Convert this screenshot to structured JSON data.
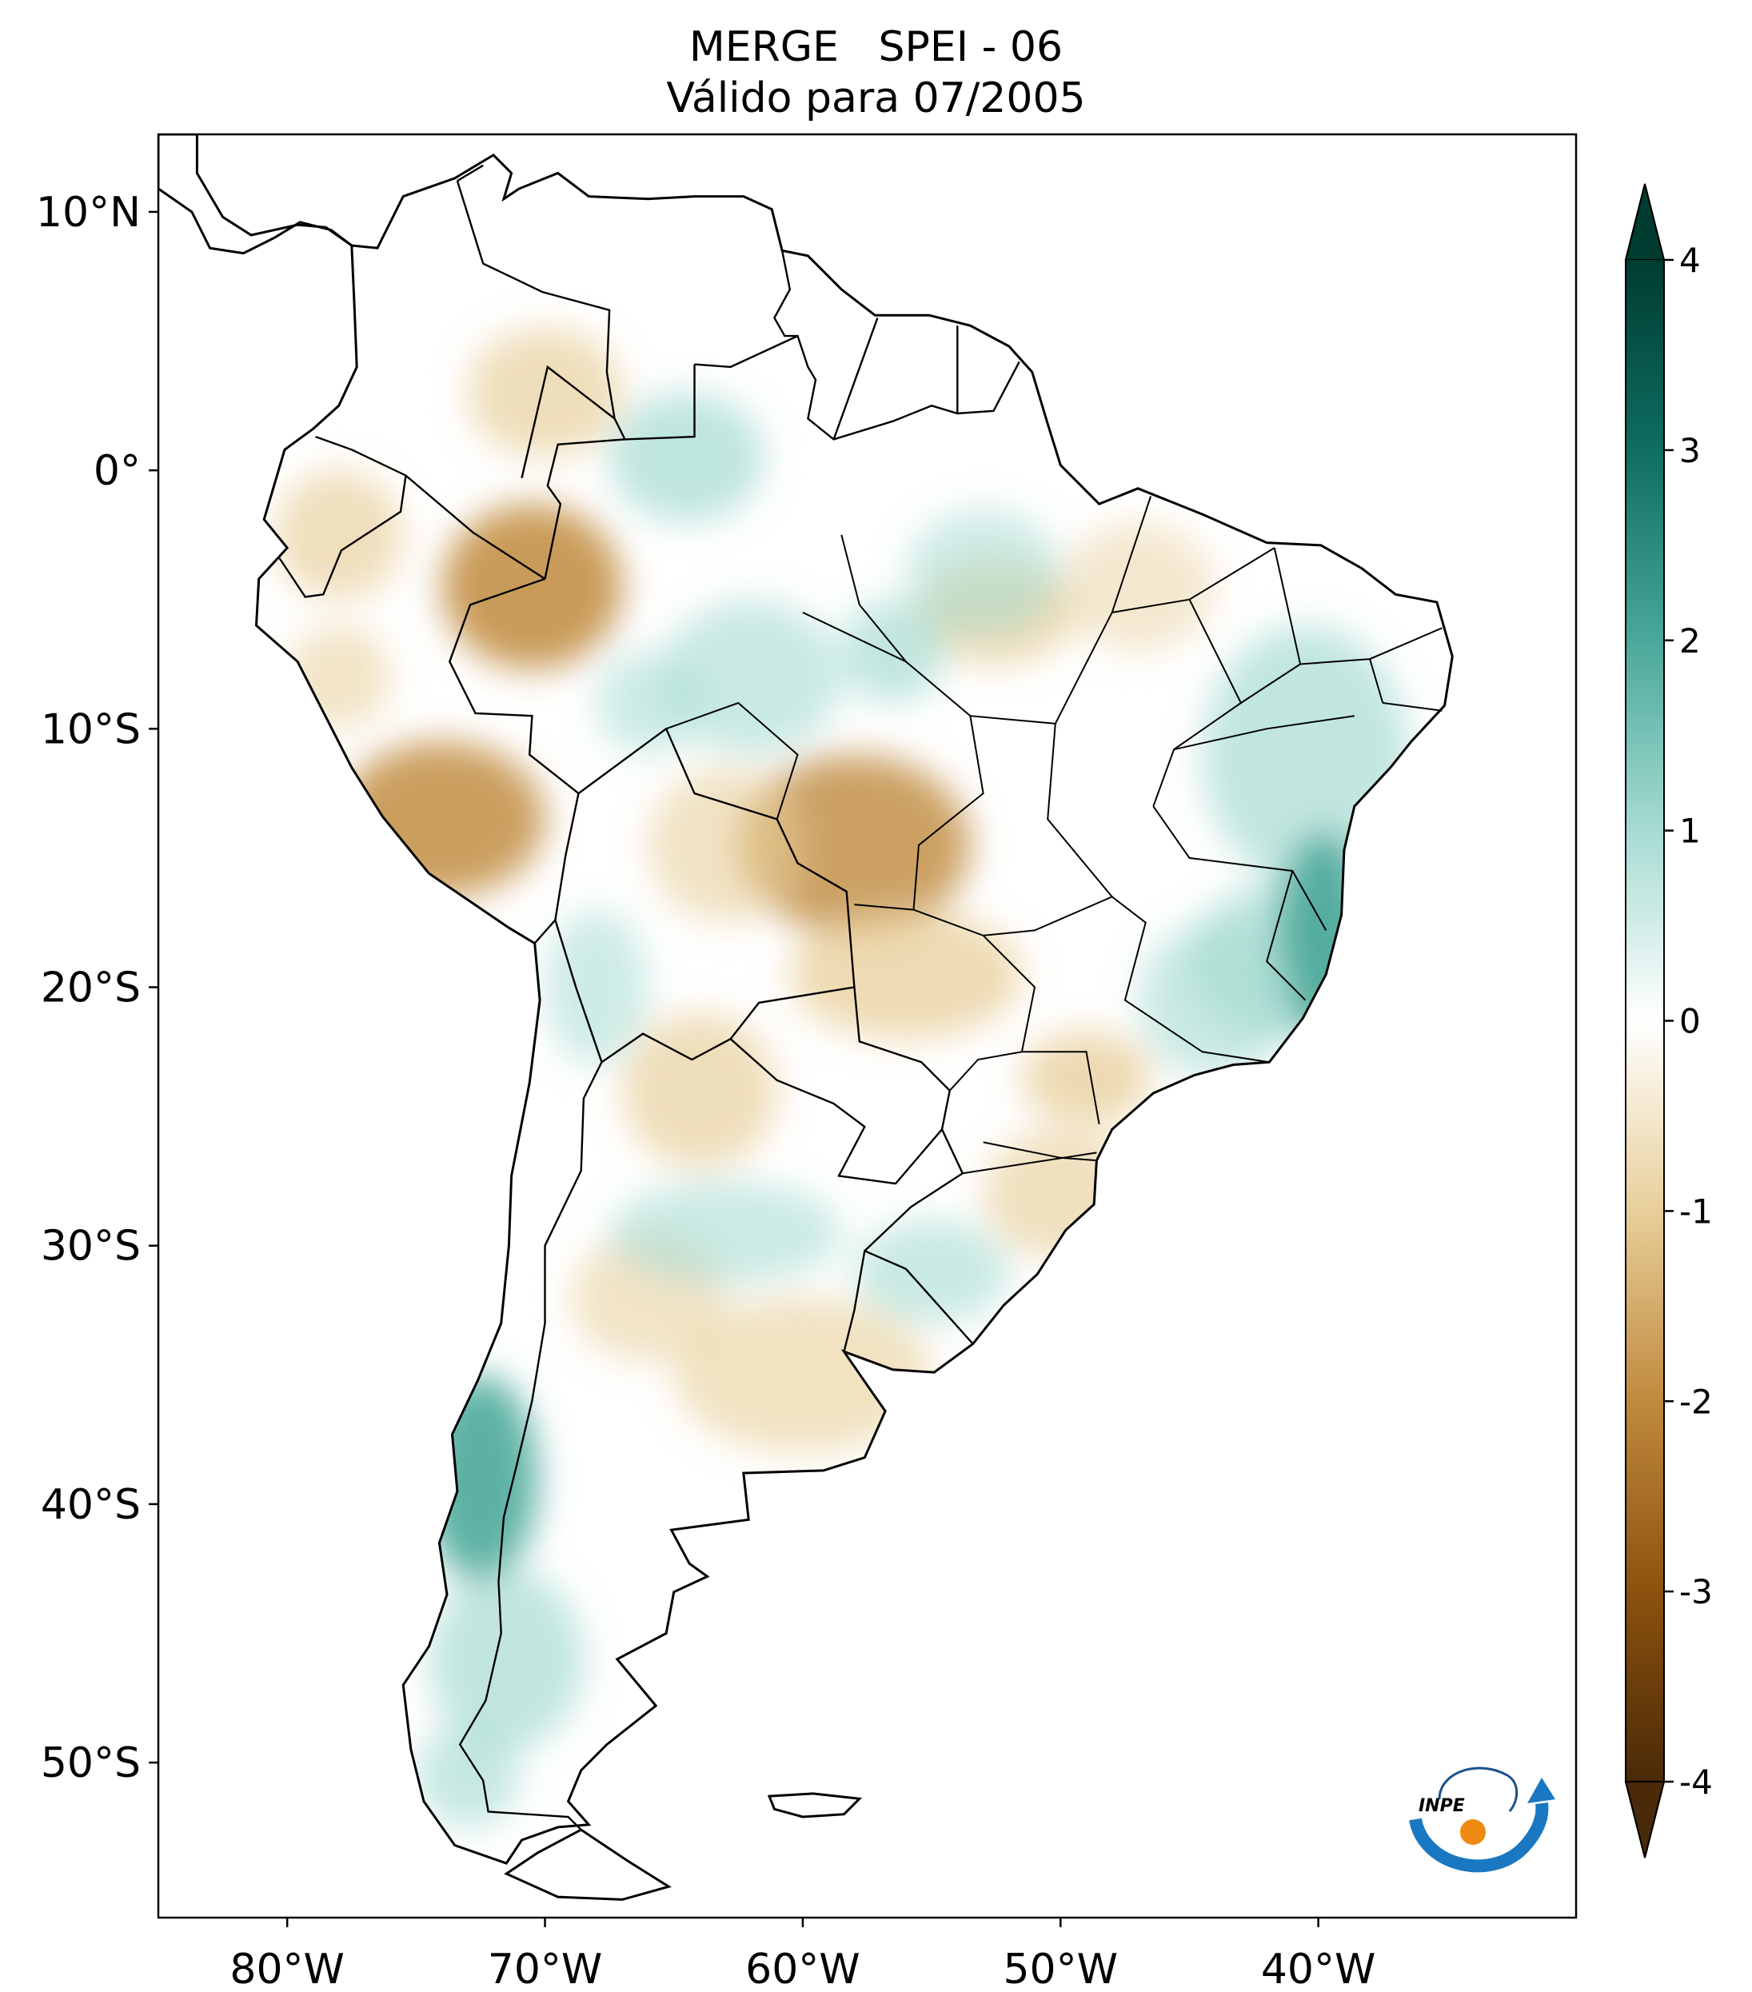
{
  "title": {
    "line1": "MERGE   SPEI - 06",
    "line2": "Válido para 07/2005"
  },
  "map": {
    "lon_range": [
      -85,
      -30
    ],
    "lat_range": [
      -56,
      13
    ],
    "x_ticks": [
      {
        "lon": -80,
        "label": "80°W"
      },
      {
        "lon": -70,
        "label": "70°W"
      },
      {
        "lon": -60,
        "label": "60°W"
      },
      {
        "lon": -50,
        "label": "50°W"
      },
      {
        "lon": -40,
        "label": "40°W"
      }
    ],
    "y_ticks": [
      {
        "lat": 10,
        "label": "10°N"
      },
      {
        "lat": 0,
        "label": "0°"
      },
      {
        "lat": -10,
        "label": "10°S"
      },
      {
        "lat": -20,
        "label": "20°S"
      },
      {
        "lat": -30,
        "label": "30°S"
      },
      {
        "lat": -40,
        "label": "40°S"
      },
      {
        "lat": -50,
        "label": "50°S"
      }
    ]
  },
  "colorbar": {
    "min": -4,
    "max": 4,
    "ticks": [
      {
        "value": 4,
        "label": "4"
      },
      {
        "value": 3,
        "label": "3"
      },
      {
        "value": 2,
        "label": "2"
      },
      {
        "value": 1,
        "label": "1"
      },
      {
        "value": 0,
        "label": "0"
      },
      {
        "value": -1,
        "label": "-1"
      },
      {
        "value": -2,
        "label": "-2"
      },
      {
        "value": -3,
        "label": "-3"
      },
      {
        "value": -4,
        "label": "-4"
      }
    ],
    "colors": {
      "dry_extreme": "#4a2a08",
      "dry_strong": "#8c520e",
      "dry_moderate": "#c08a3e",
      "dry_mild": "#e8cf9a",
      "neutral": "#ffffff",
      "wet_mild": "#a6dbd2",
      "wet_moderate": "#4aa89a",
      "wet_strong": "#0f6d62",
      "wet_extreme": "#003c30"
    }
  },
  "logo": {
    "text": "INPE"
  }
}
